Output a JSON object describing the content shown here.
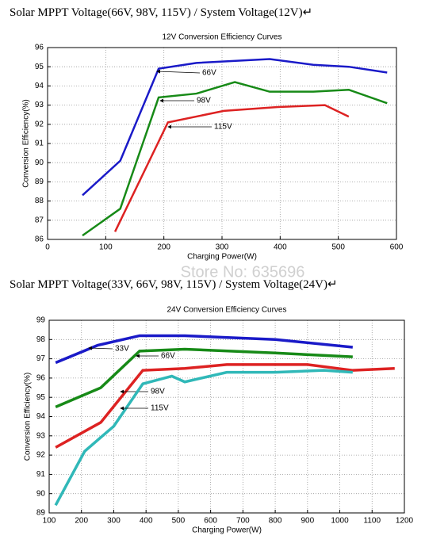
{
  "chart_data": [
    {
      "type": "line",
      "heading": "Solar MPPT Voltage(66V, 98V, 115V) / System Voltage(12V)↵",
      "title": "12V Conversion Efficiency Curves",
      "xlabel": "Charging Power(W)",
      "ylabel": "Conversion Efficiency(%)",
      "xlim": [
        0,
        600
      ],
      "xticks": [
        0,
        100,
        200,
        300,
        400,
        500,
        600
      ],
      "ylim": [
        86,
        96
      ],
      "yticks": [
        86,
        87,
        88,
        89,
        90,
        91,
        92,
        93,
        94,
        95,
        96
      ],
      "grid": true,
      "series": [
        {
          "name": "66V",
          "color": "#1a1ac8",
          "x": [
            60,
            125,
            191,
            256,
            382,
            457,
            518,
            584
          ],
          "values": [
            88.3,
            90.1,
            94.9,
            95.2,
            95.4,
            95.1,
            95.0,
            94.7
          ]
        },
        {
          "name": "98V",
          "color": "#178a17",
          "x": [
            60,
            125,
            191,
            256,
            322,
            382,
            457,
            518,
            584
          ],
          "values": [
            86.2,
            87.6,
            93.4,
            93.6,
            94.2,
            93.7,
            93.7,
            93.8,
            93.1
          ]
        },
        {
          "name": "115V",
          "color": "#dd2222",
          "x": [
            116,
            207,
            303,
            396,
            477,
            518
          ],
          "values": [
            86.4,
            92.1,
            92.7,
            92.9,
            93.0,
            92.4
          ]
        }
      ]
    },
    {
      "type": "line",
      "heading": "Solar MPPT Voltage(33V, 66V, 98V, 115V) / System Voltage(24V)↵",
      "title": "24V Conversion Efficiency Curves",
      "xlabel": "Charging Power(W)",
      "ylabel": "Conversion Efficiency(%)",
      "xlim": [
        100,
        1200
      ],
      "xticks": [
        100,
        200,
        300,
        400,
        500,
        600,
        700,
        800,
        900,
        1000,
        1100,
        1200
      ],
      "ylim": [
        89,
        99
      ],
      "yticks": [
        89,
        90,
        91,
        92,
        93,
        94,
        95,
        96,
        97,
        98,
        99
      ],
      "grid": true,
      "watermark": "Store No: 635696",
      "series": [
        {
          "name": "33V",
          "color": "#1a1ac8",
          "x": [
            120,
            250,
            380,
            520,
            800,
            1040
          ],
          "values": [
            96.8,
            97.7,
            98.2,
            98.2,
            98.0,
            97.6
          ]
        },
        {
          "name": "66V",
          "color": "#178a17",
          "x": [
            120,
            260,
            380,
            520,
            800,
            1040
          ],
          "values": [
            94.5,
            95.5,
            97.4,
            97.5,
            97.3,
            97.1
          ]
        },
        {
          "name": "98V",
          "color": "#dd2222",
          "x": [
            120,
            260,
            390,
            520,
            650,
            900,
            1040,
            1170
          ],
          "values": [
            92.4,
            93.7,
            96.4,
            96.5,
            96.7,
            96.7,
            96.4,
            96.5
          ]
        },
        {
          "name": "115V",
          "color": "#30b8b8",
          "x": [
            120,
            210,
            300,
            390,
            480,
            520,
            650,
            800,
            950,
            1040
          ],
          "values": [
            89.4,
            92.2,
            93.5,
            95.7,
            96.1,
            95.8,
            96.3,
            96.3,
            96.4,
            96.3
          ]
        }
      ]
    }
  ]
}
